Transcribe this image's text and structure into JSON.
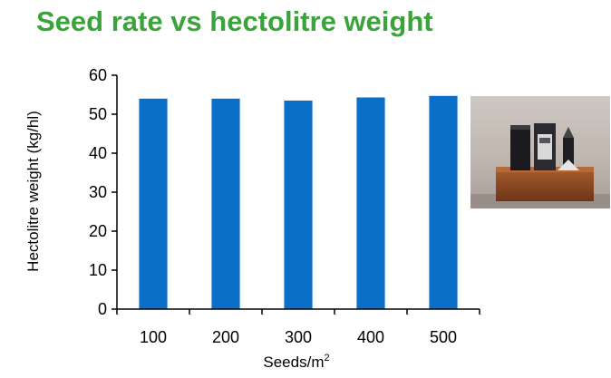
{
  "page_title": "Seed rate vs hectolitre weight",
  "chart_data": {
    "type": "bar",
    "categories": [
      "100",
      "200",
      "300",
      "400",
      "500"
    ],
    "values": [
      54.0,
      54.0,
      53.5,
      54.3,
      54.7
    ],
    "title": "Seed rate vs hectolitre weight",
    "xlabel": "Seeds/m",
    "xlabel_superscript": "2",
    "ylabel": "Hectolitre weight (kg/hl)",
    "ylim": [
      0,
      60
    ],
    "yticks": [
      "0",
      "10",
      "20",
      "30",
      "40",
      "50",
      "60"
    ],
    "bar_color": "#0a6fc8",
    "grid": false,
    "legend": "none"
  },
  "photo": {
    "icon": "hectolitre-weight-scale-photo"
  },
  "colors": {
    "title": "#3aa33a",
    "bar": "#0a6fc8",
    "axis": "#000000"
  }
}
